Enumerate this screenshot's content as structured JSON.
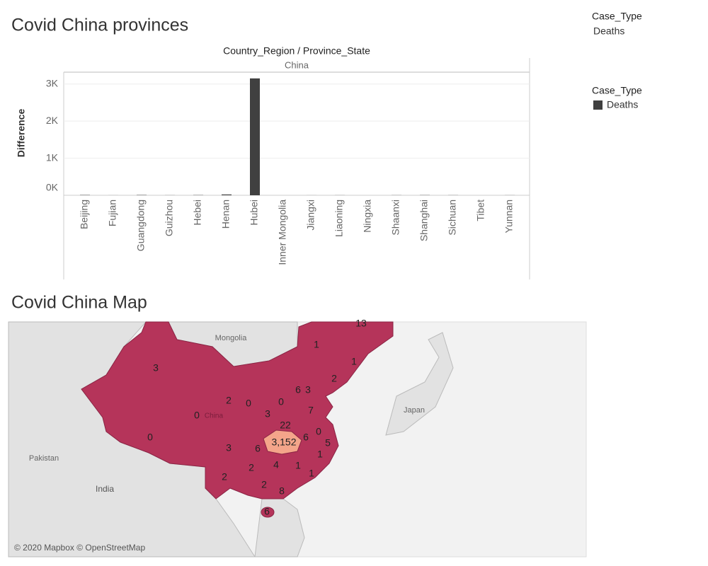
{
  "chart_data": {
    "type": "bar",
    "title": "Covid China provinces",
    "header": "Country_Region / Province_State",
    "group": "China",
    "y_label": "Difference",
    "categories": [
      "Beijing",
      "Fujian",
      "Guangdong",
      "Guizhou",
      "Hebei",
      "Henan",
      "Hubei",
      "Inner Mongolia",
      "Jiangxi",
      "Liaoning",
      "Ningxia",
      "Shaanxi",
      "Shanghai",
      "Sichuan",
      "Tibet",
      "Yunnan"
    ],
    "series": [
      {
        "name": "Deaths",
        "color": "#404040",
        "values": [
          8,
          1,
          8,
          2,
          6,
          22,
          3152,
          0,
          1,
          2,
          0,
          3,
          5,
          3,
          0,
          2
        ]
      }
    ],
    "legend_title": "Case_Type",
    "ylim": [
      0,
      3320
    ],
    "yticks": [
      {
        "value": 0,
        "label": "0K"
      },
      {
        "value": 1000,
        "label": "1K"
      },
      {
        "value": 2000,
        "label": "2K"
      },
      {
        "value": 3000,
        "label": "3K"
      }
    ],
    "grid": true
  },
  "filter": {
    "title": "Case_Type",
    "value": "Deaths"
  },
  "map": {
    "title": "Covid China Map",
    "labels": [
      "13",
      "1",
      "1",
      "2",
      "3",
      "6",
      "3",
      "2",
      "0",
      "0",
      "7",
      "0",
      "3",
      "22",
      "6",
      "0",
      "0",
      "3,152",
      "5",
      "3",
      "6",
      "1",
      "2",
      "4",
      "1",
      "1",
      "2",
      "2",
      "8",
      "6"
    ],
    "places": [
      "Mongolia",
      "Japan",
      "Pakistan",
      "India",
      "China"
    ],
    "attribution": "© 2020 Mapbox © OpenStreetMap"
  }
}
